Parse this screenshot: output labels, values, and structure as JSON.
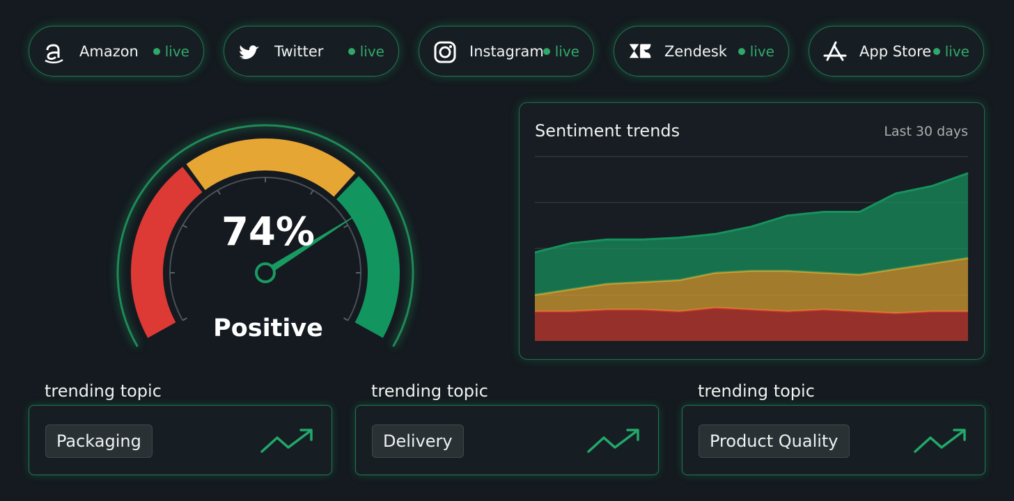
{
  "sources": [
    {
      "name": "Amazon",
      "status": "live"
    },
    {
      "name": "Twitter",
      "status": "live"
    },
    {
      "name": "Instagram",
      "status": "live"
    },
    {
      "name": "Zendesk",
      "status": "live"
    },
    {
      "name": "App Store",
      "status": "live"
    }
  ],
  "gauge": {
    "value": 74,
    "value_label": "74%",
    "range": [
      0,
      100
    ],
    "status": "Positive"
  },
  "chart_data": {
    "type": "area",
    "stacked": true,
    "title": "Sentiment trends",
    "subtitle": "Last 30 days",
    "ylim": [
      0,
      100
    ],
    "grid": true,
    "series": [
      {
        "color": "#c8382f",
        "values": [
          16,
          16,
          17,
          17,
          16,
          18,
          17,
          16,
          17,
          16,
          15,
          16,
          16
        ]
      },
      {
        "color": "#d9a030",
        "values": [
          9,
          12,
          14,
          15,
          17,
          19,
          21,
          22,
          20,
          20,
          24,
          26,
          29
        ]
      },
      {
        "color": "#17925e",
        "values": [
          23,
          25,
          24,
          23,
          23,
          21,
          24,
          30,
          33,
          34,
          41,
          42,
          46
        ]
      }
    ]
  },
  "topics": [
    {
      "heading": "trending topic",
      "name": "Packaging"
    },
    {
      "heading": "trending topic",
      "name": "Delivery"
    },
    {
      "heading": "trending topic",
      "name": "Product Quality"
    }
  ]
}
